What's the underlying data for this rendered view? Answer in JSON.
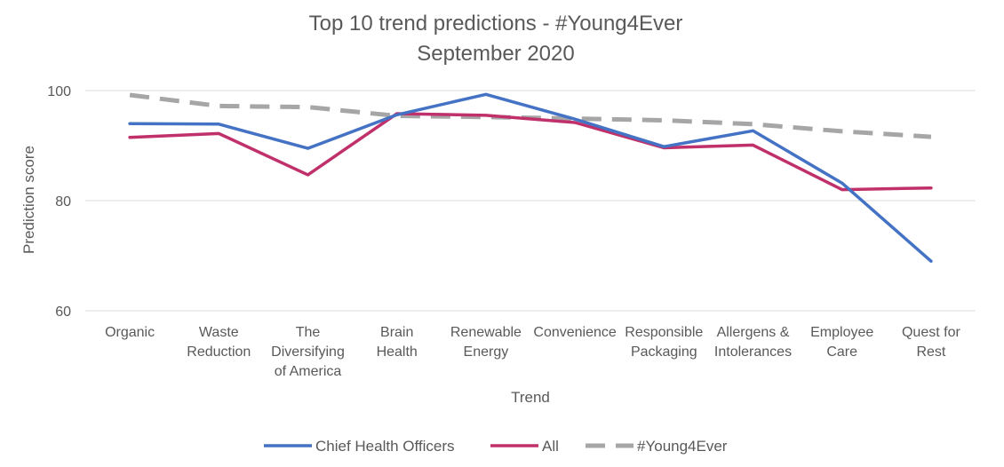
{
  "chart_data": {
    "type": "line",
    "title": "Top 10 trend predictions - #Young4Ever",
    "subtitle": "September 2020",
    "xlabel": "Trend",
    "ylabel": "Prediction score",
    "ylim": [
      60,
      100
    ],
    "yticks": [
      "60",
      "80",
      "100"
    ],
    "grid": true,
    "legend_position": "bottom",
    "categories": [
      [
        "Organic"
      ],
      [
        "Waste",
        "Reduction"
      ],
      [
        "The",
        "Diversifying",
        "of America"
      ],
      [
        "Brain",
        "Health"
      ],
      [
        "Renewable",
        "Energy"
      ],
      [
        "Convenience"
      ],
      [
        "Responsible",
        "Packaging"
      ],
      [
        "Allergens &",
        "Intolerances"
      ],
      [
        "Employee",
        "Care"
      ],
      [
        "Quest for",
        "Rest"
      ]
    ],
    "series": [
      {
        "name": "Chief Health Officers",
        "color": "#4472C4",
        "dashed": false,
        "values": [
          94.0,
          93.9,
          89.5,
          95.6,
          99.3,
          94.8,
          89.8,
          92.7,
          83.2,
          69.0
        ]
      },
      {
        "name": "All",
        "color": "#C0306A",
        "dashed": false,
        "values": [
          91.5,
          92.2,
          84.7,
          95.8,
          95.5,
          94.2,
          89.6,
          90.1,
          82.0,
          82.3
        ]
      },
      {
        "name": "#Young4Ever",
        "color": "#A6A6A6",
        "dashed": true,
        "values": [
          99.2,
          97.2,
          97.0,
          95.4,
          95.2,
          94.9,
          94.6,
          93.9,
          92.6,
          91.6
        ]
      }
    ]
  }
}
